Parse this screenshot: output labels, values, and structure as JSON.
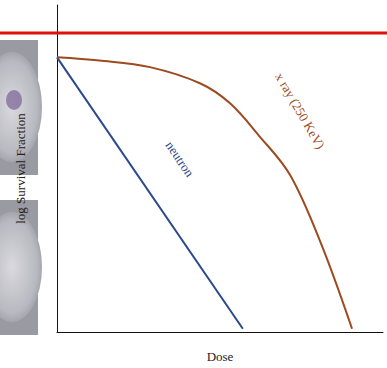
{
  "chart_data": {
    "type": "line",
    "x_label": "Dose",
    "y_label": "log Survival Fraction",
    "xlim": [
      0,
      10
    ],
    "ylim": [
      0,
      10
    ],
    "tick_labels": false,
    "grid": false,
    "series": [
      {
        "name": "neutron",
        "color": "#2b4a8b",
        "line_style": "solid",
        "marker": "none",
        "x": [
          0,
          5.7
        ],
        "values": [
          8.4,
          0.1
        ]
      },
      {
        "name": "x ray (250 KeV)",
        "color": "#9c4a1e",
        "line_style": "solid",
        "marker": "none",
        "x": [
          0,
          1.3,
          2.85,
          4.4,
          5.3,
          6.2,
          7.15,
          8.1,
          9.05
        ],
        "values": [
          8.4,
          8.3,
          8.1,
          7.6,
          7.0,
          6.0,
          4.8,
          2.7,
          0.1
        ]
      }
    ]
  }
}
